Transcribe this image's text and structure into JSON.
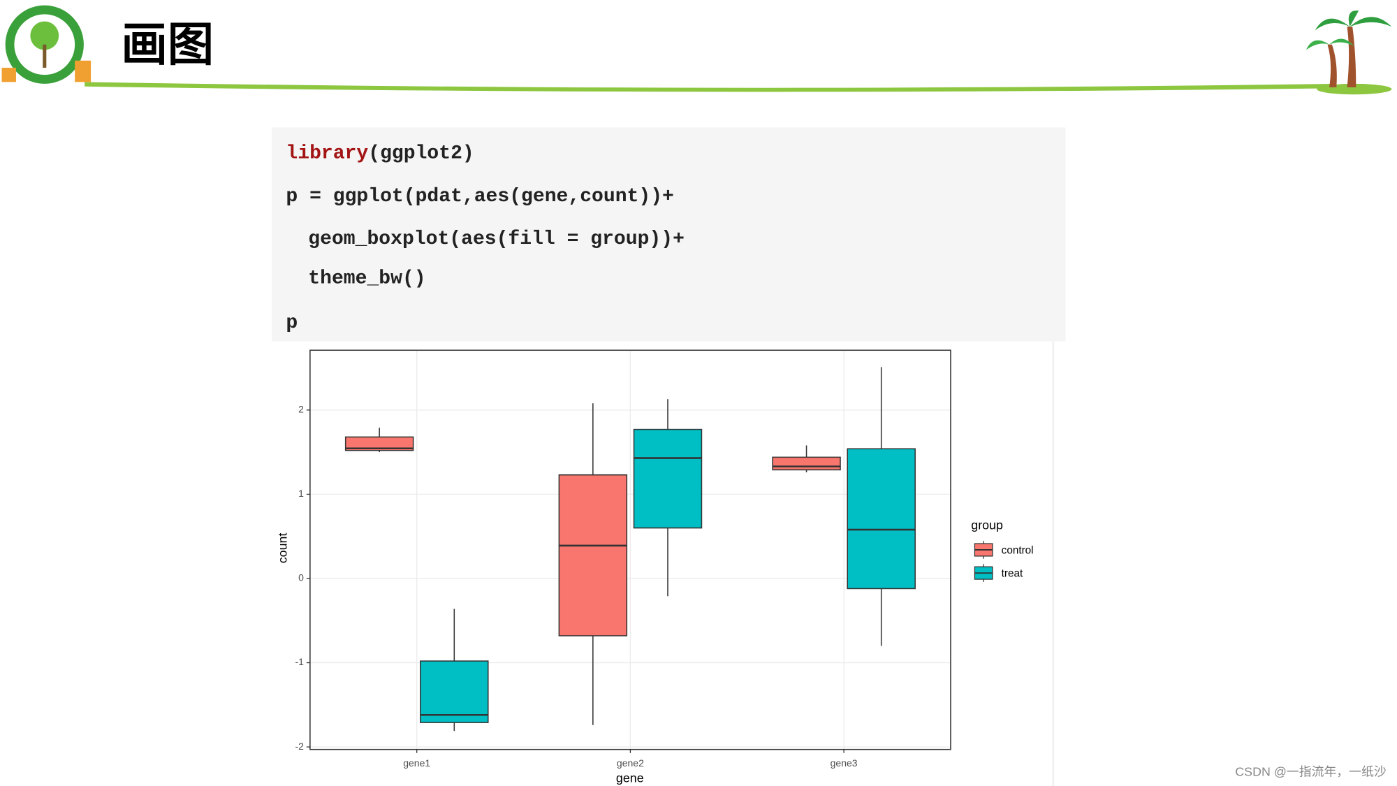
{
  "header": {
    "title": "画图"
  },
  "code": {
    "lines": [
      {
        "keyword": "library",
        "rest": "(ggplot2)"
      },
      {
        "text": "p = ggplot(pdat,aes(gene,count))+"
      },
      {
        "text": "geom_boxplot(aes(fill = group))+"
      },
      {
        "text": "theme_bw()"
      },
      {
        "text": "p"
      }
    ]
  },
  "chart_data": {
    "type": "box",
    "x_label": "gene",
    "y_label": "count",
    "categories": [
      "gene1",
      "gene2",
      "gene3"
    ],
    "legend_title": "group",
    "legend_position": "right",
    "grid": true,
    "ylim": [
      -2.03,
      2.71
    ],
    "yticks": [
      -2,
      -1,
      0,
      1,
      2
    ],
    "series": [
      {
        "name": "control",
        "color": "#F8766D",
        "min": [
          1.5,
          -1.74,
          1.26
        ],
        "q1": [
          1.52,
          -0.68,
          1.29
        ],
        "median": [
          1.545,
          0.39,
          1.33
        ],
        "q3": [
          1.68,
          1.23,
          1.44
        ],
        "max": [
          1.79,
          2.08,
          1.58
        ]
      },
      {
        "name": "treat",
        "color": "#00BFC4",
        "min": [
          -1.81,
          -0.21,
          -0.8
        ],
        "q1": [
          -1.71,
          0.6,
          -0.12
        ],
        "median": [
          -1.62,
          1.43,
          0.58
        ],
        "q3": [
          -0.98,
          1.77,
          1.54
        ],
        "max": [
          -0.36,
          2.13,
          2.51
        ]
      }
    ]
  },
  "watermark": "CSDN @一指流年，一纸沙"
}
